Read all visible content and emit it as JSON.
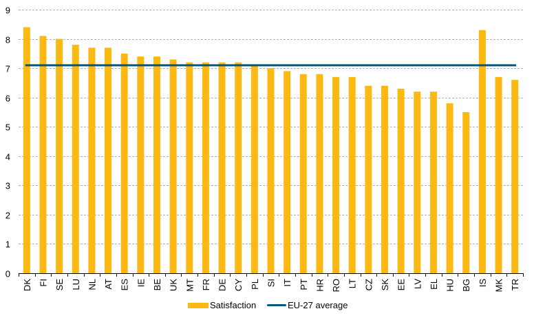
{
  "chart_data": {
    "type": "bar",
    "title": "",
    "xlabel": "",
    "ylabel": "",
    "ylim": [
      0,
      9
    ],
    "yticks": [
      0,
      1,
      2,
      3,
      4,
      5,
      6,
      7,
      8,
      9
    ],
    "grid": true,
    "legend_position": "bottom",
    "categories": [
      "DK",
      "FI",
      "SE",
      "LU",
      "NL",
      "AT",
      "ES",
      "IE",
      "BE",
      "UK",
      "MT",
      "FR",
      "DE",
      "CY",
      "PL",
      "SI",
      "IT",
      "PT",
      "HR",
      "RO",
      "LT",
      "CZ",
      "SK",
      "EE",
      "LV",
      "EL",
      "HU",
      "BG",
      "IS",
      "MK",
      "TR"
    ],
    "series": [
      {
        "name": "Satisfaction",
        "type": "bar",
        "color": "#FDB913",
        "values": [
          8.4,
          8.1,
          8.0,
          7.8,
          7.7,
          7.7,
          7.5,
          7.4,
          7.4,
          7.3,
          7.2,
          7.2,
          7.2,
          7.2,
          7.1,
          7.0,
          6.9,
          6.8,
          6.8,
          6.7,
          6.7,
          6.4,
          6.4,
          6.3,
          6.2,
          6.2,
          5.8,
          5.5,
          8.3,
          6.7,
          6.6
        ]
      },
      {
        "name": "EU-27 average",
        "type": "line",
        "color": "#00587F",
        "value": 7.1
      }
    ]
  },
  "legend": {
    "satisfaction_label": "Satisfaction",
    "eu_average_label": "EU-27 average"
  }
}
